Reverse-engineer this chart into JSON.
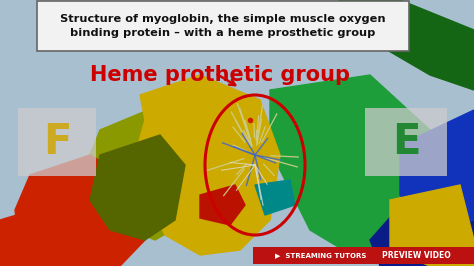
{
  "title_line1": "Structure of myoglobin, the simple muscle oxygen",
  "title_line2": "binding protein – with a heme prosthetic group",
  "heme_label": "Heme prothetic group",
  "label_F": "F",
  "label_E": "E",
  "bottom_bar_left_text": "▶  STREAMING TUTORS",
  "bottom_bar_right_text": "PREVIEW VIDEO",
  "bg_color": "#a8bfd0",
  "title_box_color": "#f2f2f2",
  "title_text_color": "#111111",
  "heme_label_color": "#cc0000",
  "label_F_color": "#ccaa22",
  "label_E_color": "#228833",
  "bottom_bar_color": "#bb1111",
  "bottom_bar_text_color": "#ffffff",
  "ellipse_color": "#cc0000",
  "figsize": [
    4.74,
    2.66
  ],
  "dpi": 100
}
